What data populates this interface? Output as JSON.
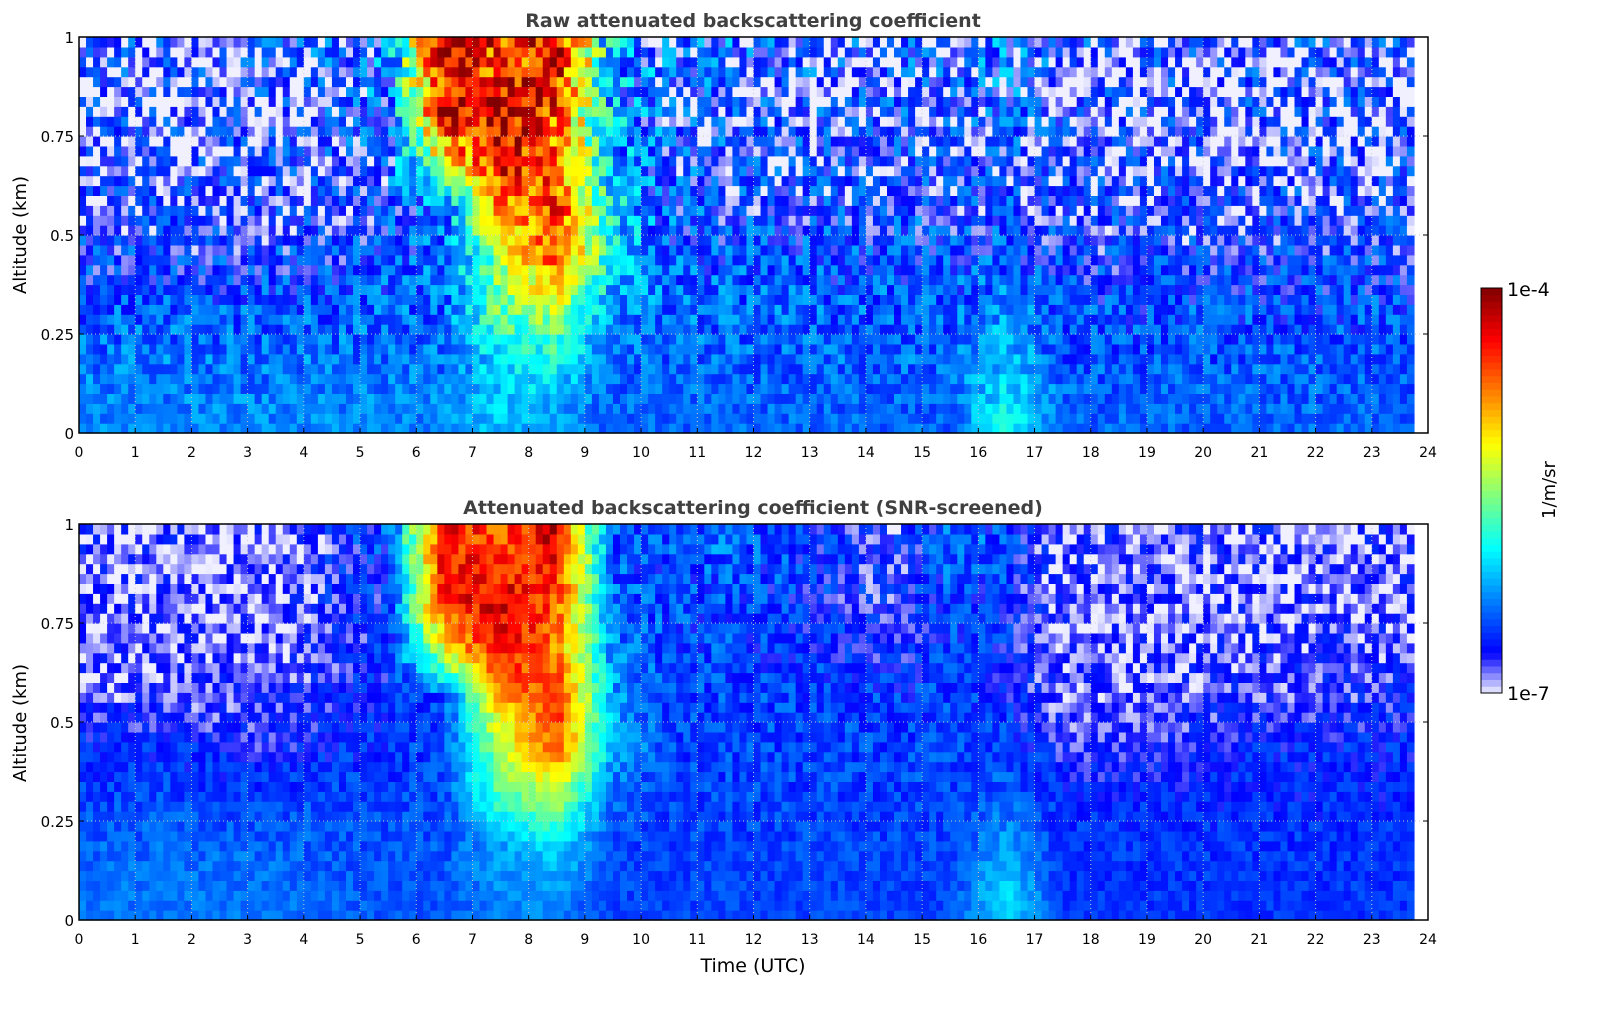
{
  "chart_data": [
    {
      "type": "heatmap",
      "title": "Raw attenuated backscattering coefficient",
      "xlabel": "",
      "ylabel": "Altitude (km)",
      "xlim": [
        0,
        24
      ],
      "ylim": [
        0,
        1
      ],
      "x_data_extent": [
        0,
        23.75
      ],
      "xticks": [
        "0",
        "1",
        "2",
        "3",
        "4",
        "5",
        "6",
        "7",
        "8",
        "9",
        "10",
        "11",
        "12",
        "13",
        "14",
        "15",
        "16",
        "17",
        "18",
        "19",
        "20",
        "21",
        "22",
        "23",
        "24"
      ],
      "yticks": [
        "0",
        "0.25",
        "0.5",
        "0.75",
        "1"
      ],
      "grid": true,
      "value_unit": "log10(1/m/sr)",
      "altitude_bands_km": [
        0.0625,
        0.1875,
        0.3125,
        0.4375,
        0.5625,
        0.6875,
        0.8125,
        0.9375
      ],
      "hours": [
        0,
        1,
        2,
        3,
        4,
        5,
        6,
        7,
        8,
        9,
        10,
        11,
        12,
        13,
        14,
        15,
        16,
        17,
        18,
        19,
        20,
        21,
        22,
        23
      ],
      "values": [
        [
          -6.3,
          -6.3,
          -6.3,
          -6.3,
          -6.3,
          -6.3,
          -6.3,
          -6.1,
          -6.2,
          -6.4,
          -6.4,
          -6.4,
          -6.4,
          -6.4,
          -6.4,
          -6.4,
          -5.9,
          -6.4,
          -6.4,
          -6.4,
          -6.4,
          -6.4,
          -6.4,
          -6.4
        ],
        [
          -6.35,
          -6.35,
          -6.35,
          -6.35,
          -6.35,
          -6.35,
          -6.35,
          -6.0,
          -5.9,
          -6.4,
          -6.4,
          -6.4,
          -6.4,
          -6.4,
          -6.4,
          -6.4,
          -6.1,
          -6.45,
          -6.45,
          -6.45,
          -6.45,
          -6.45,
          -6.45,
          -6.45
        ],
        [
          -6.45,
          -6.45,
          -6.45,
          -6.45,
          -6.45,
          -6.4,
          -6.4,
          -5.6,
          -5.4,
          -6.3,
          -6.4,
          -6.4,
          -6.4,
          -6.45,
          -6.45,
          -6.45,
          -6.3,
          -6.5,
          -6.5,
          -6.5,
          -6.5,
          -6.5,
          -6.5,
          -6.5
        ],
        [
          -6.6,
          -6.6,
          -6.6,
          -6.6,
          -6.6,
          -6.5,
          -6.4,
          -5.5,
          -4.6,
          -6.0,
          -6.4,
          -6.5,
          -6.5,
          -6.5,
          -6.5,
          -6.5,
          -6.5,
          -6.6,
          -6.6,
          -6.6,
          -6.6,
          -6.6,
          -6.6,
          -6.6
        ],
        [
          -6.7,
          -6.7,
          -6.7,
          -6.7,
          -6.7,
          -6.6,
          -6.4,
          -4.9,
          -4.5,
          -6.0,
          -6.5,
          -6.6,
          -6.6,
          -6.6,
          -6.6,
          -6.6,
          -6.6,
          -6.7,
          -6.7,
          -6.7,
          -6.7,
          -6.7,
          -6.7,
          -6.7
        ],
        [
          -6.75,
          -6.75,
          -6.75,
          -6.75,
          -6.7,
          -6.6,
          -5.2,
          -4.3,
          -4.8,
          -6.1,
          -6.6,
          -6.6,
          -6.7,
          -6.7,
          -6.7,
          -6.7,
          -6.7,
          -6.75,
          -6.75,
          -6.75,
          -6.75,
          -6.75,
          -6.75,
          -6.75
        ],
        [
          -6.8,
          -6.8,
          -6.8,
          -6.8,
          -6.7,
          -6.5,
          -4.3,
          -4.3,
          -4.6,
          -6.2,
          -6.6,
          -6.7,
          -6.7,
          -6.7,
          -6.7,
          -6.7,
          -6.6,
          -6.8,
          -6.8,
          -6.8,
          -6.8,
          -6.8,
          -6.8,
          -6.8
        ],
        [
          -6.8,
          -6.8,
          -6.8,
          -6.8,
          -6.7,
          -6.4,
          -4.3,
          -4.6,
          -4.3,
          -6.2,
          -6.6,
          -6.6,
          -6.7,
          -6.7,
          -6.7,
          -6.7,
          -6.5,
          -6.8,
          -6.8,
          -6.8,
          -6.8,
          -6.8,
          -6.8,
          -6.8
        ]
      ]
    },
    {
      "type": "heatmap",
      "title": "Attenuated backscattering coefficient (SNR-screened)",
      "xlabel": "Time (UTC)",
      "ylabel": "Altitude (km)",
      "xlim": [
        0,
        24
      ],
      "ylim": [
        0,
        1
      ],
      "x_data_extent": [
        0,
        23.75
      ],
      "xticks": [
        "0",
        "1",
        "2",
        "3",
        "4",
        "5",
        "6",
        "7",
        "8",
        "9",
        "10",
        "11",
        "12",
        "13",
        "14",
        "15",
        "16",
        "17",
        "18",
        "19",
        "20",
        "21",
        "22",
        "23",
        "24"
      ],
      "yticks": [
        "0",
        "0.25",
        "0.5",
        "0.75",
        "1"
      ],
      "grid": true,
      "value_unit": "log10(1/m/sr)",
      "altitude_bands_km": [
        0.0625,
        0.1875,
        0.3125,
        0.4375,
        0.5625,
        0.6875,
        0.8125,
        0.9375
      ],
      "hours": [
        0,
        1,
        2,
        3,
        4,
        5,
        6,
        7,
        8,
        9,
        10,
        11,
        12,
        13,
        14,
        15,
        16,
        17,
        18,
        19,
        20,
        21,
        22,
        23
      ],
      "values": [
        [
          -6.35,
          -6.35,
          -6.35,
          -6.35,
          -6.4,
          -6.45,
          -6.45,
          -6.3,
          -6.3,
          -6.5,
          -6.5,
          -6.5,
          -6.5,
          -6.5,
          -6.5,
          -6.5,
          -6.0,
          -6.55,
          -6.55,
          -6.55,
          -6.55,
          -6.55,
          -6.55,
          -6.55
        ],
        [
          -6.4,
          -6.4,
          -6.4,
          -6.4,
          -6.45,
          -6.45,
          -6.45,
          -6.2,
          -6.0,
          -6.5,
          -6.5,
          -6.5,
          -6.5,
          -6.5,
          -6.5,
          -6.5,
          -6.2,
          -6.55,
          -6.55,
          -6.55,
          -6.55,
          -6.55,
          -6.55,
          -6.55
        ],
        [
          -6.5,
          -6.5,
          -6.5,
          -6.5,
          -6.5,
          -6.5,
          -6.5,
          -5.7,
          -5.4,
          -6.4,
          -6.5,
          -6.5,
          -6.5,
          -6.5,
          -6.5,
          -6.5,
          -6.4,
          -6.6,
          -6.6,
          -6.6,
          -6.6,
          -6.6,
          -6.6,
          -6.6
        ],
        [
          -6.6,
          -6.6,
          -6.65,
          -6.7,
          -6.6,
          -6.55,
          -6.5,
          -5.4,
          -4.6,
          -6.2,
          -6.5,
          -6.5,
          -6.5,
          -6.5,
          -6.5,
          -6.5,
          -6.5,
          -6.7,
          -6.75,
          -6.7,
          -6.65,
          -6.6,
          -6.6,
          -6.6
        ],
        [
          -6.8,
          -6.8,
          -6.8,
          -6.75,
          -6.7,
          -6.6,
          -6.5,
          -4.9,
          -4.5,
          -6.2,
          -6.5,
          -6.5,
          -6.5,
          -6.5,
          -6.55,
          -6.5,
          -6.6,
          -6.85,
          -6.85,
          -6.8,
          -6.75,
          -6.75,
          -6.75,
          -6.7
        ],
        [
          -6.85,
          -6.85,
          -6.85,
          -6.85,
          -6.75,
          -6.6,
          -5.2,
          -4.3,
          -4.8,
          -6.3,
          -6.5,
          -6.5,
          -6.55,
          -6.6,
          -6.7,
          -6.5,
          -6.6,
          -6.85,
          -6.85,
          -6.85,
          -6.8,
          -6.8,
          -6.8,
          -6.8
        ],
        [
          -6.85,
          -6.85,
          -6.9,
          -6.9,
          -6.7,
          -6.6,
          -4.4,
          -4.3,
          -4.6,
          -6.4,
          -6.5,
          -6.5,
          -6.55,
          -6.65,
          -6.75,
          -6.5,
          -6.6,
          -6.85,
          -6.85,
          -6.85,
          -6.85,
          -6.85,
          -6.85,
          -6.85
        ],
        [
          -6.85,
          -6.85,
          -6.9,
          -6.9,
          -6.7,
          -6.5,
          -4.4,
          -4.6,
          -4.3,
          -6.5,
          -6.5,
          -6.4,
          -6.5,
          -6.6,
          -6.75,
          -6.4,
          -6.5,
          -6.85,
          -6.85,
          -6.85,
          -6.85,
          -6.85,
          -6.85,
          -6.85
        ]
      ]
    }
  ],
  "colorbar": {
    "label": "1/m/sr",
    "max_label": "1e-4",
    "min_label": "1e-7",
    "range_log10": [
      -7,
      -4
    ]
  }
}
